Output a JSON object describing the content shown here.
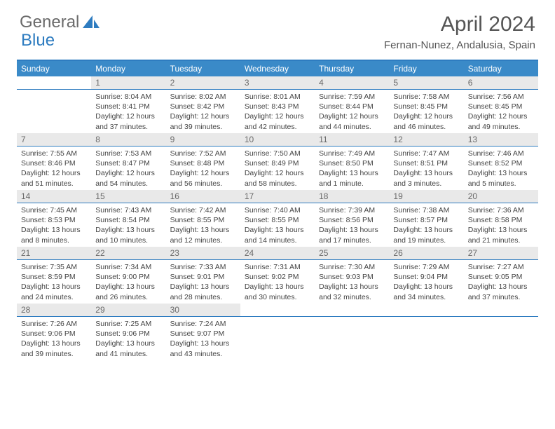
{
  "logo": {
    "text1": "General",
    "text2": "Blue"
  },
  "title": {
    "month": "April 2024",
    "location": "Fernan-Nunez, Andalusia, Spain"
  },
  "colors": {
    "header_bg": "#3a8ac8",
    "border": "#2e7cc0",
    "daynum_bg": "#e9e9e9",
    "text": "#444444",
    "logo_gray": "#6a6a6a",
    "logo_blue": "#2e7cc0"
  },
  "weekdays": [
    "Sunday",
    "Monday",
    "Tuesday",
    "Wednesday",
    "Thursday",
    "Friday",
    "Saturday"
  ],
  "weeks": [
    {
      "nums": [
        "",
        "1",
        "2",
        "3",
        "4",
        "5",
        "6"
      ],
      "cells": [
        null,
        {
          "sunrise": "Sunrise: 8:04 AM",
          "sunset": "Sunset: 8:41 PM",
          "daylight": "Daylight: 12 hours and 37 minutes."
        },
        {
          "sunrise": "Sunrise: 8:02 AM",
          "sunset": "Sunset: 8:42 PM",
          "daylight": "Daylight: 12 hours and 39 minutes."
        },
        {
          "sunrise": "Sunrise: 8:01 AM",
          "sunset": "Sunset: 8:43 PM",
          "daylight": "Daylight: 12 hours and 42 minutes."
        },
        {
          "sunrise": "Sunrise: 7:59 AM",
          "sunset": "Sunset: 8:44 PM",
          "daylight": "Daylight: 12 hours and 44 minutes."
        },
        {
          "sunrise": "Sunrise: 7:58 AM",
          "sunset": "Sunset: 8:45 PM",
          "daylight": "Daylight: 12 hours and 46 minutes."
        },
        {
          "sunrise": "Sunrise: 7:56 AM",
          "sunset": "Sunset: 8:45 PM",
          "daylight": "Daylight: 12 hours and 49 minutes."
        }
      ]
    },
    {
      "nums": [
        "7",
        "8",
        "9",
        "10",
        "11",
        "12",
        "13"
      ],
      "cells": [
        {
          "sunrise": "Sunrise: 7:55 AM",
          "sunset": "Sunset: 8:46 PM",
          "daylight": "Daylight: 12 hours and 51 minutes."
        },
        {
          "sunrise": "Sunrise: 7:53 AM",
          "sunset": "Sunset: 8:47 PM",
          "daylight": "Daylight: 12 hours and 54 minutes."
        },
        {
          "sunrise": "Sunrise: 7:52 AM",
          "sunset": "Sunset: 8:48 PM",
          "daylight": "Daylight: 12 hours and 56 minutes."
        },
        {
          "sunrise": "Sunrise: 7:50 AM",
          "sunset": "Sunset: 8:49 PM",
          "daylight": "Daylight: 12 hours and 58 minutes."
        },
        {
          "sunrise": "Sunrise: 7:49 AM",
          "sunset": "Sunset: 8:50 PM",
          "daylight": "Daylight: 13 hours and 1 minute."
        },
        {
          "sunrise": "Sunrise: 7:47 AM",
          "sunset": "Sunset: 8:51 PM",
          "daylight": "Daylight: 13 hours and 3 minutes."
        },
        {
          "sunrise": "Sunrise: 7:46 AM",
          "sunset": "Sunset: 8:52 PM",
          "daylight": "Daylight: 13 hours and 5 minutes."
        }
      ]
    },
    {
      "nums": [
        "14",
        "15",
        "16",
        "17",
        "18",
        "19",
        "20"
      ],
      "cells": [
        {
          "sunrise": "Sunrise: 7:45 AM",
          "sunset": "Sunset: 8:53 PM",
          "daylight": "Daylight: 13 hours and 8 minutes."
        },
        {
          "sunrise": "Sunrise: 7:43 AM",
          "sunset": "Sunset: 8:54 PM",
          "daylight": "Daylight: 13 hours and 10 minutes."
        },
        {
          "sunrise": "Sunrise: 7:42 AM",
          "sunset": "Sunset: 8:55 PM",
          "daylight": "Daylight: 13 hours and 12 minutes."
        },
        {
          "sunrise": "Sunrise: 7:40 AM",
          "sunset": "Sunset: 8:55 PM",
          "daylight": "Daylight: 13 hours and 14 minutes."
        },
        {
          "sunrise": "Sunrise: 7:39 AM",
          "sunset": "Sunset: 8:56 PM",
          "daylight": "Daylight: 13 hours and 17 minutes."
        },
        {
          "sunrise": "Sunrise: 7:38 AM",
          "sunset": "Sunset: 8:57 PM",
          "daylight": "Daylight: 13 hours and 19 minutes."
        },
        {
          "sunrise": "Sunrise: 7:36 AM",
          "sunset": "Sunset: 8:58 PM",
          "daylight": "Daylight: 13 hours and 21 minutes."
        }
      ]
    },
    {
      "nums": [
        "21",
        "22",
        "23",
        "24",
        "25",
        "26",
        "27"
      ],
      "cells": [
        {
          "sunrise": "Sunrise: 7:35 AM",
          "sunset": "Sunset: 8:59 PM",
          "daylight": "Daylight: 13 hours and 24 minutes."
        },
        {
          "sunrise": "Sunrise: 7:34 AM",
          "sunset": "Sunset: 9:00 PM",
          "daylight": "Daylight: 13 hours and 26 minutes."
        },
        {
          "sunrise": "Sunrise: 7:33 AM",
          "sunset": "Sunset: 9:01 PM",
          "daylight": "Daylight: 13 hours and 28 minutes."
        },
        {
          "sunrise": "Sunrise: 7:31 AM",
          "sunset": "Sunset: 9:02 PM",
          "daylight": "Daylight: 13 hours and 30 minutes."
        },
        {
          "sunrise": "Sunrise: 7:30 AM",
          "sunset": "Sunset: 9:03 PM",
          "daylight": "Daylight: 13 hours and 32 minutes."
        },
        {
          "sunrise": "Sunrise: 7:29 AM",
          "sunset": "Sunset: 9:04 PM",
          "daylight": "Daylight: 13 hours and 34 minutes."
        },
        {
          "sunrise": "Sunrise: 7:27 AM",
          "sunset": "Sunset: 9:05 PM",
          "daylight": "Daylight: 13 hours and 37 minutes."
        }
      ]
    },
    {
      "nums": [
        "28",
        "29",
        "30",
        "",
        "",
        "",
        ""
      ],
      "cells": [
        {
          "sunrise": "Sunrise: 7:26 AM",
          "sunset": "Sunset: 9:06 PM",
          "daylight": "Daylight: 13 hours and 39 minutes."
        },
        {
          "sunrise": "Sunrise: 7:25 AM",
          "sunset": "Sunset: 9:06 PM",
          "daylight": "Daylight: 13 hours and 41 minutes."
        },
        {
          "sunrise": "Sunrise: 7:24 AM",
          "sunset": "Sunset: 9:07 PM",
          "daylight": "Daylight: 13 hours and 43 minutes."
        },
        null,
        null,
        null,
        null
      ]
    }
  ]
}
